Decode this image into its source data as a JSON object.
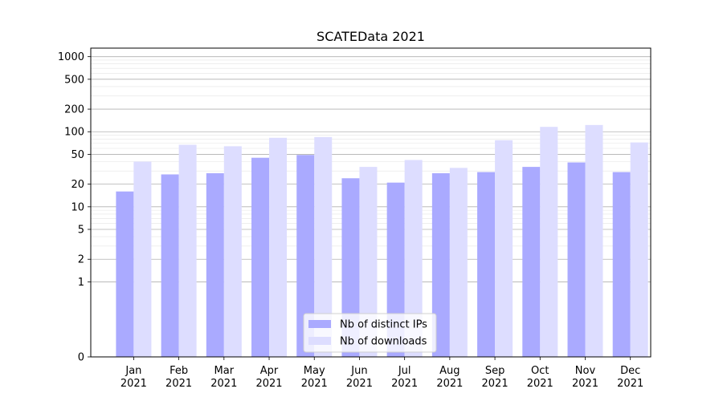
{
  "chart_data": {
    "type": "bar",
    "title": "SCATEData 2021",
    "xlabel": "",
    "ylabel": "",
    "y_scale": "symlog",
    "ylim": [
      0,
      1300
    ],
    "y_ticks": [
      0,
      1,
      2,
      5,
      10,
      20,
      50,
      100,
      200,
      500,
      1000
    ],
    "categories": [
      "Jan\n2021",
      "Feb\n2021",
      "Mar\n2021",
      "Apr\n2021",
      "May\n2021",
      "Jun\n2021",
      "Jul\n2021",
      "Aug\n2021",
      "Sep\n2021",
      "Oct\n2021",
      "Nov\n2021",
      "Dec\n2021"
    ],
    "series": [
      {
        "name": "Nb of distinct IPs",
        "color": "#aaaaff",
        "values": [
          16,
          27,
          28,
          45,
          49,
          24,
          21,
          28,
          29,
          34,
          39,
          29
        ]
      },
      {
        "name": "Nb of downloads",
        "color": "#ddddff",
        "values": [
          40,
          67,
          64,
          83,
          85,
          34,
          42,
          33,
          77,
          116,
          123,
          72
        ]
      }
    ],
    "grid": true,
    "legend_position": "lower center"
  }
}
